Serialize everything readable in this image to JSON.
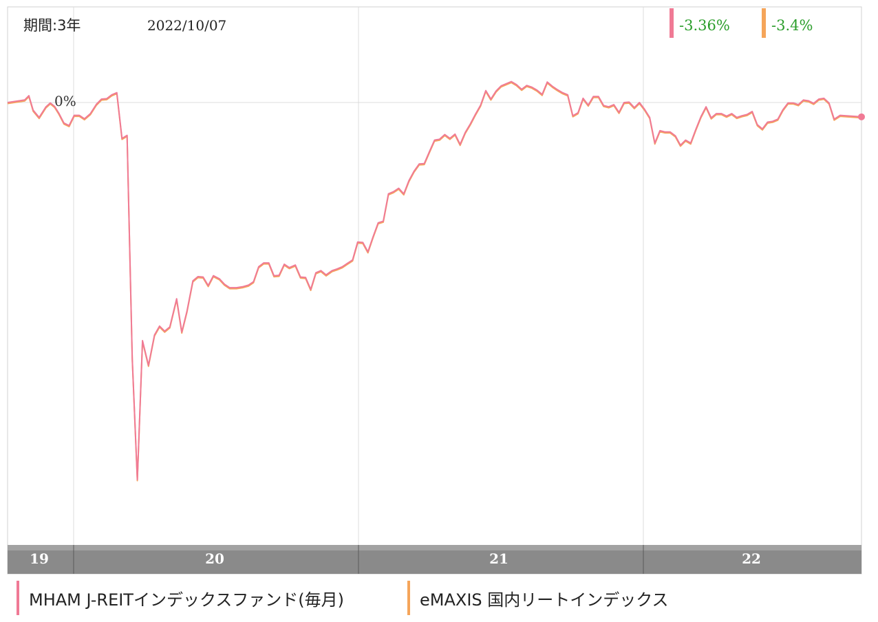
{
  "header": {
    "period": "期間:3年",
    "date": "2022/10/07"
  },
  "values_box": {
    "mham": "-3.36%",
    "emaxis": "-3.4%"
  },
  "colors": {
    "mham": "#f07a95",
    "emaxis": "#f5a55a",
    "value_text": "#2a9d2a",
    "year_bar": "#8a8a8a",
    "grid": "#dcdcdc"
  },
  "chart_data": {
    "type": "line",
    "y_reference_label": "0%",
    "x_axis_labels": [
      "19",
      "20",
      "21",
      "22"
    ],
    "series": [
      {
        "name": "MHAM J-REITインデックスファンド(毎月)",
        "final_value": "-3.36%"
      },
      {
        "name": "eMAXIS 国内リートインデックス",
        "final_value": "-3.4%"
      }
    ],
    "points": [
      [
        0.0,
        0.0
      ],
      [
        0.02,
        0.6
      ],
      [
        0.025,
        1.6
      ],
      [
        0.03,
        -1.8
      ],
      [
        0.037,
        -3.5
      ],
      [
        0.045,
        -1.0
      ],
      [
        0.05,
        -0.1
      ],
      [
        0.055,
        -0.9
      ],
      [
        0.06,
        -2.5
      ],
      [
        0.066,
        -4.8
      ],
      [
        0.072,
        -5.4
      ],
      [
        0.078,
        -3.0
      ],
      [
        0.084,
        -3.0
      ],
      [
        0.09,
        -3.8
      ],
      [
        0.097,
        -2.6
      ],
      [
        0.104,
        -0.4
      ],
      [
        0.11,
        0.8
      ],
      [
        0.116,
        0.9
      ],
      [
        0.122,
        1.8
      ],
      [
        0.128,
        2.3
      ],
      [
        0.134,
        -8.4
      ],
      [
        0.14,
        -7.7
      ],
      [
        0.146,
        -60.0
      ],
      [
        0.152,
        -88.4
      ],
      [
        0.158,
        -55.8
      ],
      [
        0.165,
        -61.6
      ],
      [
        0.172,
        -54.5
      ],
      [
        0.178,
        -52.4
      ],
      [
        0.184,
        -53.6
      ],
      [
        0.19,
        -52.6
      ],
      [
        0.198,
        -46.0
      ],
      [
        0.204,
        -53.8
      ],
      [
        0.21,
        -49.0
      ],
      [
        0.217,
        -41.8
      ],
      [
        0.223,
        -40.8
      ],
      [
        0.229,
        -40.9
      ],
      [
        0.235,
        -42.9
      ],
      [
        0.241,
        -40.6
      ],
      [
        0.248,
        -41.3
      ],
      [
        0.254,
        -42.6
      ],
      [
        0.26,
        -43.4
      ],
      [
        0.268,
        -43.4
      ],
      [
        0.275,
        -43.2
      ],
      [
        0.282,
        -42.8
      ],
      [
        0.288,
        -42.0
      ],
      [
        0.294,
        -38.5
      ],
      [
        0.3,
        -37.6
      ],
      [
        0.306,
        -37.6
      ],
      [
        0.312,
        -40.6
      ],
      [
        0.318,
        -40.5
      ],
      [
        0.324,
        -37.9
      ],
      [
        0.33,
        -38.7
      ],
      [
        0.337,
        -38.1
      ],
      [
        0.343,
        -40.9
      ],
      [
        0.349,
        -41.0
      ],
      [
        0.355,
        -43.8
      ],
      [
        0.361,
        -39.9
      ],
      [
        0.367,
        -39.4
      ],
      [
        0.373,
        -40.4
      ],
      [
        0.38,
        -39.4
      ],
      [
        0.386,
        -39.0
      ],
      [
        0.392,
        -38.5
      ],
      [
        0.398,
        -37.7
      ],
      [
        0.404,
        -36.9
      ],
      [
        0.41,
        -32.7
      ],
      [
        0.416,
        -32.8
      ],
      [
        0.422,
        -35.0
      ],
      [
        0.428,
        -31.5
      ],
      [
        0.434,
        -28.2
      ],
      [
        0.44,
        -27.8
      ],
      [
        0.446,
        -21.4
      ],
      [
        0.452,
        -20.9
      ],
      [
        0.458,
        -20.1
      ],
      [
        0.464,
        -21.4
      ],
      [
        0.47,
        -18.3
      ],
      [
        0.476,
        -16.1
      ],
      [
        0.482,
        -14.4
      ],
      [
        0.488,
        -14.3
      ],
      [
        0.494,
        -11.5
      ],
      [
        0.5,
        -8.8
      ],
      [
        0.506,
        -8.6
      ],
      [
        0.512,
        -7.5
      ],
      [
        0.518,
        -8.4
      ],
      [
        0.524,
        -7.4
      ],
      [
        0.53,
        -9.8
      ],
      [
        0.536,
        -7.0
      ],
      [
        0.542,
        -5.0
      ],
      [
        0.548,
        -2.7
      ],
      [
        0.554,
        -0.6
      ],
      [
        0.56,
        2.8
      ],
      [
        0.566,
        0.8
      ],
      [
        0.572,
        2.7
      ],
      [
        0.578,
        3.9
      ],
      [
        0.584,
        4.4
      ],
      [
        0.59,
        4.9
      ],
      [
        0.596,
        4.2
      ],
      [
        0.602,
        3.1
      ],
      [
        0.608,
        4.0
      ],
      [
        0.614,
        3.6
      ],
      [
        0.62,
        2.9
      ],
      [
        0.626,
        1.9
      ],
      [
        0.632,
        4.8
      ],
      [
        0.638,
        3.8
      ],
      [
        0.644,
        3.0
      ],
      [
        0.65,
        2.3
      ],
      [
        0.656,
        1.8
      ],
      [
        0.662,
        -3.1
      ],
      [
        0.668,
        -2.4
      ],
      [
        0.674,
        1.0
      ],
      [
        0.68,
        -0.6
      ],
      [
        0.686,
        1.4
      ],
      [
        0.692,
        1.4
      ],
      [
        0.698,
        -0.7
      ],
      [
        0.704,
        -1.0
      ],
      [
        0.71,
        -0.5
      ],
      [
        0.716,
        -2.3
      ],
      [
        0.722,
        0.0
      ],
      [
        0.728,
        0.1
      ],
      [
        0.734,
        -1.2
      ],
      [
        0.74,
        0.0
      ],
      [
        0.746,
        -1.6
      ],
      [
        0.752,
        -3.5
      ],
      [
        0.758,
        -9.5
      ],
      [
        0.764,
        -6.6
      ],
      [
        0.77,
        -6.9
      ],
      [
        0.776,
        -6.9
      ],
      [
        0.782,
        -7.8
      ],
      [
        0.788,
        -10.0
      ],
      [
        0.794,
        -8.8
      ],
      [
        0.8,
        -9.5
      ],
      [
        0.806,
        -6.3
      ],
      [
        0.812,
        -3.3
      ],
      [
        0.818,
        -1.0
      ],
      [
        0.824,
        -3.6
      ],
      [
        0.83,
        -2.6
      ],
      [
        0.836,
        -2.6
      ],
      [
        0.842,
        -3.2
      ],
      [
        0.848,
        -2.6
      ],
      [
        0.854,
        -3.5
      ],
      [
        0.86,
        -3.1
      ],
      [
        0.866,
        -2.8
      ],
      [
        0.872,
        -2.1
      ],
      [
        0.878,
        -5.2
      ],
      [
        0.884,
        -6.2
      ],
      [
        0.89,
        -4.6
      ],
      [
        0.896,
        -4.4
      ],
      [
        0.902,
        -3.9
      ],
      [
        0.908,
        -1.7
      ],
      [
        0.914,
        -0.1
      ],
      [
        0.92,
        -0.1
      ],
      [
        0.926,
        -0.5
      ],
      [
        0.932,
        0.6
      ],
      [
        0.938,
        0.4
      ],
      [
        0.944,
        -0.2
      ],
      [
        0.95,
        0.8
      ],
      [
        0.956,
        1.0
      ],
      [
        0.962,
        -0.1
      ],
      [
        0.968,
        -3.9
      ],
      [
        0.975,
        -3.0
      ],
      [
        1.0,
        -3.36
      ]
    ]
  },
  "legend": [
    {
      "label": "MHAM J-REITインデックスファンド(毎月)"
    },
    {
      "label": "eMAXIS 国内リートインデックス"
    }
  ]
}
